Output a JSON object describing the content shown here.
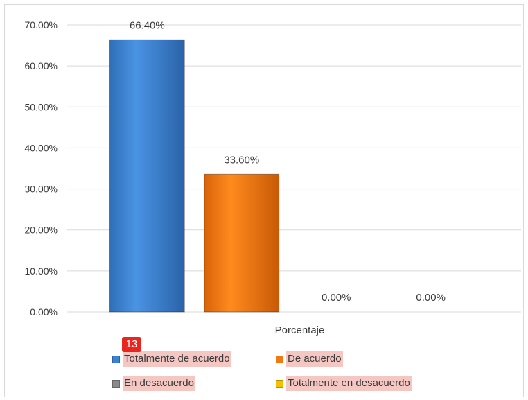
{
  "chart_data": {
    "type": "bar",
    "categories": [
      "Porcentaje"
    ],
    "series": [
      {
        "name": "Totalmente de acuerdo",
        "values": [
          66.4
        ],
        "color": "#3b82d6"
      },
      {
        "name": "De acuerdo",
        "values": [
          33.6
        ],
        "color": "#f07a10"
      },
      {
        "name": "En desacuerdo",
        "values": [
          0.0
        ],
        "color": "#8a8a8a"
      },
      {
        "name": "Totalmente en desacuerdo",
        "values": [
          0.0
        ],
        "color": "#f2c200"
      }
    ],
    "data_labels": [
      "66.40%",
      "33.60%",
      "0.00%",
      "0.00%"
    ],
    "ylim": [
      0,
      70
    ],
    "yticks": [
      "0.00%",
      "10.00%",
      "20.00%",
      "30.00%",
      "40.00%",
      "50.00%",
      "60.00%",
      "70.00%"
    ],
    "grid": true,
    "legend_position": "bottom"
  },
  "annotation_badge": "13"
}
